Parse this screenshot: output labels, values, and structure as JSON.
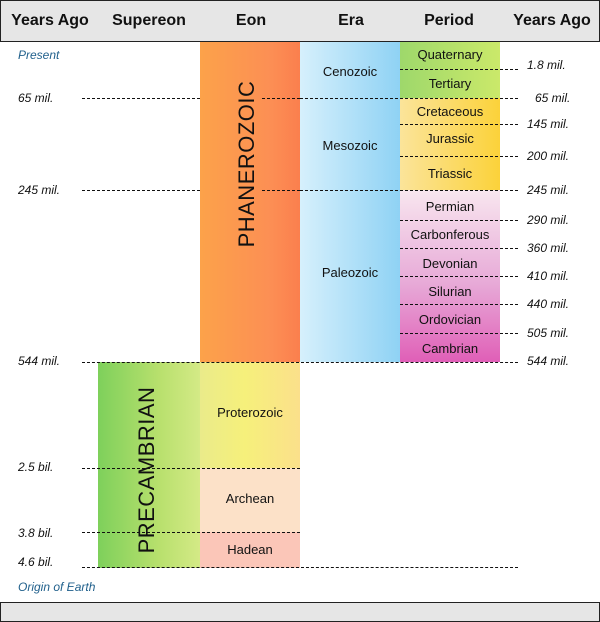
{
  "header": {
    "years_left": "Years Ago",
    "supereon": "Supereon",
    "eon": "Eon",
    "era": "Era",
    "period": "Period",
    "years_right": "Years Ago"
  },
  "markers": {
    "present": "Present",
    "origin": "Origin of Earth"
  },
  "supereon": {
    "precambrian": "PRECAMBRIAN"
  },
  "eons": {
    "phanerozoic": "PHANEROZOIC",
    "proterozoic": "Proterozoic",
    "archean": "Archean",
    "hadean": "Hadean"
  },
  "eras": {
    "cenozoic": "Cenozoic",
    "mesozoic": "Mesozoic",
    "paleozoic": "Paleozoic"
  },
  "periods": [
    "Quaternary",
    "Tertiary",
    "Cretaceous",
    "Jurassic",
    "Triassic",
    "Permian",
    "Carbonferous",
    "Devonian",
    "Silurian",
    "Ordovician",
    "Cambrian"
  ],
  "left_times": [
    "65 mil.",
    "245 mil.",
    "544 mil.",
    "2.5 bil.",
    "3.8 bil.",
    "4.6 bil."
  ],
  "right_times": [
    "1.8 mil.",
    "65 mil.",
    "145 mil.",
    "200 mil.",
    "245 mil.",
    "290 mil.",
    "360 mil.",
    "410 mil.",
    "440 mil.",
    "505 mil.",
    "544 mil."
  ],
  "colors": {
    "header_bg": "#e6e6e6",
    "marker_blue": "#1f5f8b"
  }
}
